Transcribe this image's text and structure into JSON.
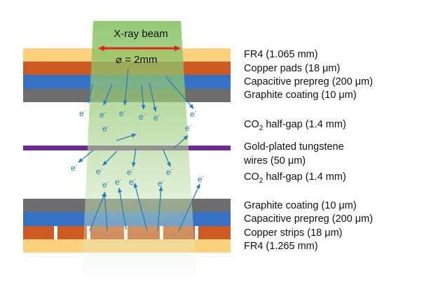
{
  "beam": {
    "title": "X-ray beam",
    "diameter_symbol": "⌀",
    "diameter_text": "= 2mm"
  },
  "electron_label": "e",
  "electron_charge": "-",
  "layers_top": [
    {
      "name": "FR4 (1.065 mm)",
      "color": "#fdd27e"
    },
    {
      "name": "Copper pads (18 μm)",
      "color": "#cd5a22"
    },
    {
      "name": "Capacitive prepreg (200 μm)",
      "color": "#3572c6"
    },
    {
      "name": "Graphite coating (10 μm)",
      "color": "#6d6d6d"
    }
  ],
  "gap_top": {
    "prefix": "CO",
    "sub": "2",
    "suffix": " half-gap (1.4 mm)"
  },
  "wires": {
    "line1": "Gold-plated tungstene",
    "line2": "wires (50 μm)",
    "color": "#6a2a8e"
  },
  "gap_bottom": {
    "prefix": "CO",
    "sub": "2",
    "suffix": " half-gap (1.4 mm)"
  },
  "layers_bottom": [
    {
      "name": "Graphite coating (10 μm)",
      "color": "#6d6d6d"
    },
    {
      "name": "Capacitive prepreg (200 μm)",
      "color": "#3572c6"
    },
    {
      "name": "Copper strips (18 μm)",
      "color": "#cd5a22"
    },
    {
      "name": "FR4 (1.265 mm)",
      "color": "#fdd27e"
    }
  ],
  "colors": {
    "beam_green": "#8cc567",
    "arrow_blue": "#2a7db8",
    "diameter_arrow": "#e8201e"
  }
}
